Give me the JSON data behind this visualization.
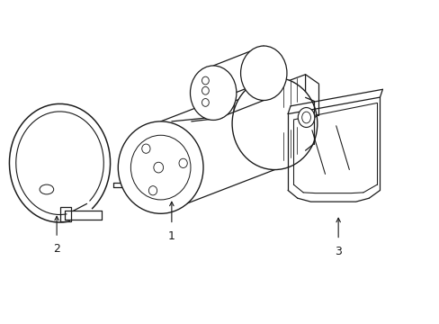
{
  "background_color": "#ffffff",
  "line_color": "#1a1a1a",
  "line_width": 0.9,
  "label_1": "1",
  "label_2": "2",
  "label_3": "3",
  "label_fontsize": 9,
  "fig_width": 4.89,
  "fig_height": 3.6,
  "dpi": 100
}
